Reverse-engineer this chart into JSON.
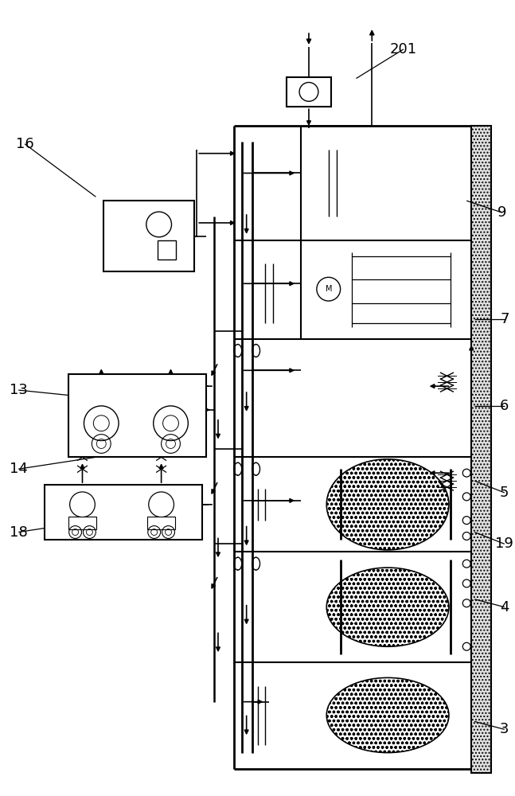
{
  "background": "#ffffff",
  "line_color": "#000000",
  "figsize": [
    6.47,
    10.0
  ],
  "dpi": 100,
  "labels": [
    [
      "201",
      510,
      58
    ],
    [
      "16",
      30,
      178
    ],
    [
      "9",
      635,
      265
    ],
    [
      "7",
      638,
      400
    ],
    [
      "6",
      638,
      510
    ],
    [
      "5",
      638,
      620
    ],
    [
      "19",
      638,
      685
    ],
    [
      "4",
      638,
      765
    ],
    [
      "3",
      638,
      920
    ],
    [
      "13",
      22,
      490
    ],
    [
      "14",
      22,
      590
    ],
    [
      "18",
      22,
      670
    ]
  ],
  "leader_lines": [
    [
      "201",
      510,
      58,
      450,
      95
    ],
    [
      "16",
      30,
      178,
      120,
      245
    ],
    [
      "9",
      620,
      265,
      590,
      250
    ],
    [
      "7",
      625,
      400,
      600,
      400
    ],
    [
      "6",
      625,
      510,
      600,
      510
    ],
    [
      "5",
      625,
      620,
      600,
      605
    ],
    [
      "19",
      625,
      685,
      600,
      670
    ],
    [
      "4",
      625,
      765,
      600,
      755
    ],
    [
      "3",
      625,
      920,
      600,
      910
    ],
    [
      "13",
      55,
      490,
      120,
      500
    ],
    [
      "14",
      55,
      590,
      120,
      575
    ],
    [
      "18",
      55,
      670,
      120,
      655
    ]
  ]
}
